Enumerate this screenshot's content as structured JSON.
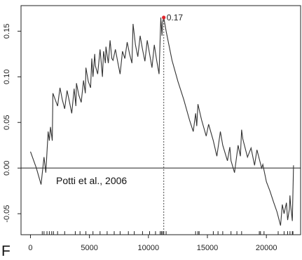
{
  "panel_letter": "F",
  "chart_data": {
    "type": "line",
    "annotation_text": "Potti et al., 2006",
    "peak": {
      "x": 11300,
      "y": 0.165,
      "label": "0.17",
      "color": "#e0242a"
    },
    "xlim": [
      -800,
      22900
    ],
    "ylim": [
      -0.073,
      0.178
    ],
    "x_ticks": [
      0,
      5000,
      10000,
      15000,
      20000
    ],
    "y_ticks": [
      -0.05,
      0.0,
      0.05,
      0.1,
      0.15
    ],
    "y_tick_labels": [
      "-0.05",
      "0.00",
      "0.05",
      "0.10",
      "0.15"
    ],
    "grid": false,
    "legend": "none",
    "line_color": "#333333",
    "reference_line_y": 0.0,
    "vertical_dotted_x": 11300,
    "series": [
      {
        "x": [
          0,
          500,
          900,
          1150,
          1300,
          1500,
          1600,
          1700,
          1850,
          1900,
          2300,
          2500,
          2700,
          2900,
          3100,
          3300,
          3500,
          3700,
          3850,
          3900,
          4100,
          4300,
          4500,
          4650,
          4700,
          4900,
          5100,
          5200,
          5300,
          5450,
          5500,
          5700,
          5900,
          6100,
          6200,
          6350,
          6400,
          6600,
          6750,
          6900,
          7000,
          7200,
          7400,
          7600,
          7800,
          8000,
          8200,
          8400,
          8600,
          8700,
          8900,
          9100,
          9300,
          9500,
          9700,
          9900,
          10100,
          10300,
          10500,
          10700,
          10900,
          11050,
          11150,
          11200,
          11300,
          11500,
          12000,
          12500,
          13000,
          13500,
          13800,
          14000,
          14100,
          14200,
          14500,
          14900,
          15100,
          15500,
          15800,
          16100,
          16300,
          16700,
          16900,
          17000,
          17300,
          17600,
          17800,
          17900,
          18000,
          18400,
          18700,
          19000,
          19200,
          19600,
          19700,
          20000,
          20300,
          20600,
          20900,
          21200,
          21350,
          21500,
          21700,
          21800,
          21950,
          22000,
          22050,
          22200,
          22300
        ],
        "y": [
          0.018,
          0.0,
          -0.018,
          0.012,
          -0.005,
          0.04,
          0.03,
          0.045,
          0.03,
          0.082,
          0.068,
          0.088,
          0.075,
          0.065,
          0.085,
          0.073,
          0.06,
          0.087,
          0.068,
          0.093,
          0.08,
          0.072,
          0.096,
          0.082,
          0.11,
          0.095,
          0.088,
          0.12,
          0.1,
          0.125,
          0.112,
          0.103,
          0.13,
          0.1,
          0.128,
          0.115,
          0.133,
          0.115,
          0.14,
          0.12,
          0.118,
          0.13,
          0.116,
          0.103,
          0.128,
          0.12,
          0.138,
          0.125,
          0.115,
          0.158,
          0.135,
          0.122,
          0.145,
          0.13,
          0.117,
          0.14,
          0.125,
          0.11,
          0.135,
          0.118,
          0.103,
          0.165,
          0.145,
          0.16,
          0.165,
          0.15,
          0.118,
          0.095,
          0.075,
          0.052,
          0.04,
          0.06,
          0.046,
          0.07,
          0.053,
          0.035,
          0.048,
          0.03,
          0.013,
          0.04,
          0.025,
          0.008,
          0.023,
          0.008,
          -0.005,
          0.025,
          0.013,
          0.042,
          0.032,
          0.012,
          0.022,
          0.003,
          0.02,
          0.0,
          0.004,
          -0.015,
          -0.025,
          -0.037,
          -0.048,
          -0.063,
          -0.04,
          -0.05,
          -0.038,
          -0.057,
          -0.045,
          -0.03,
          -0.04,
          -0.058,
          0.003
        ]
      }
    ],
    "rug_x": [
      1000,
      1150,
      1400,
      1600,
      1800,
      1950,
      2300,
      2900,
      3800,
      4200,
      4700,
      5300,
      5900,
      6500,
      7100,
      7600,
      8300,
      8800,
      9500,
      10100,
      10600,
      11000,
      11100,
      11200,
      11300,
      11500,
      14000,
      14200,
      14300,
      15500,
      15900,
      16300,
      17000,
      17500,
      17900,
      19400,
      19500,
      19800,
      21000,
      21500,
      21800,
      22000,
      22200,
      22250
    ]
  }
}
